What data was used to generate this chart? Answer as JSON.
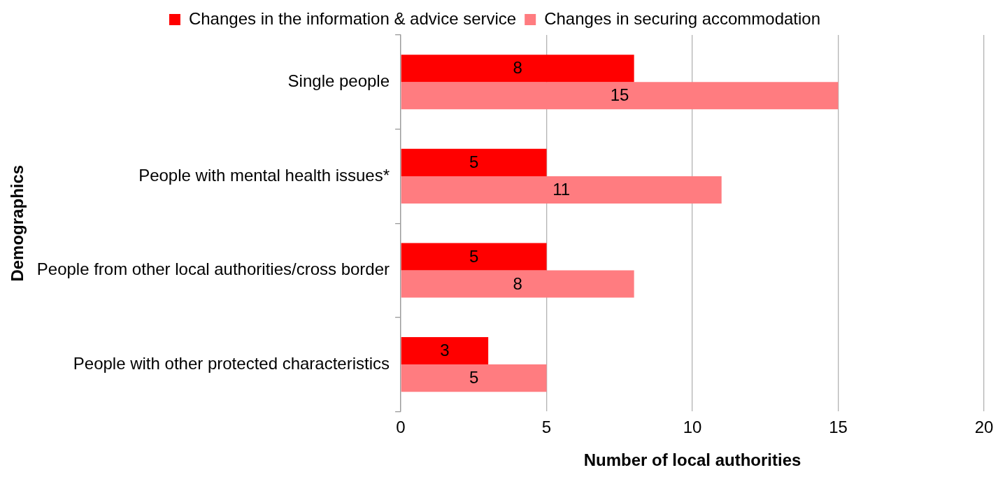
{
  "chart_data": {
    "type": "bar",
    "orientation": "horizontal",
    "xlabel": "Number of local authorities",
    "ylabel": "Demographics",
    "categories": [
      "Single people",
      "People with mental health issues*",
      "People from other local authorities/cross border",
      "People with other protected characteristics"
    ],
    "series": [
      {
        "name": "Changes in the information & advice service",
        "color": "#ff0000",
        "values": [
          8,
          5,
          5,
          3
        ]
      },
      {
        "name": "Changes in securing accommodation",
        "color": "#ff7c80",
        "values": [
          15,
          11,
          8,
          5
        ]
      }
    ],
    "xlim": [
      0,
      20
    ],
    "xticks": [
      0,
      5,
      10,
      15,
      20
    ],
    "grid": "x",
    "legend": "top",
    "data_labels": true
  }
}
